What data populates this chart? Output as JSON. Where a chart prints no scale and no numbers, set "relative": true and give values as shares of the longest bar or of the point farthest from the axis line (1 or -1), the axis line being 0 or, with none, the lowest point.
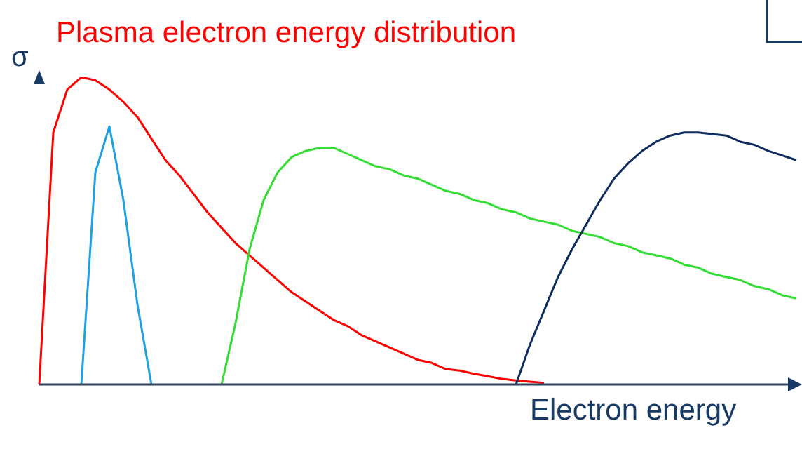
{
  "chart_data": {
    "type": "line",
    "title": "Plasma electron energy distribution",
    "xlabel": "Electron energy",
    "ylabel": "σ",
    "relative": true,
    "tick_labels": false,
    "marker": "none",
    "line_style": "solid",
    "categories": [
      null,
      null,
      null,
      null,
      null,
      null,
      null,
      null,
      null,
      null,
      null,
      null,
      null,
      null,
      null,
      null,
      null,
      null,
      null,
      null,
      null,
      null,
      null,
      null,
      null,
      null,
      null,
      null,
      null,
      null,
      null,
      null,
      null,
      null,
      null,
      null,
      null,
      null,
      null,
      null,
      null,
      null,
      null,
      null,
      null,
      null,
      null,
      null,
      null,
      null,
      null,
      null,
      null,
      null,
      null
    ],
    "series": [
      {
        "color": "#ff0000",
        "values": [
          0,
          0.82,
          0.96,
          1,
          0.99,
          0.96,
          0.92,
          0.87,
          0.8,
          0.73,
          0.68,
          0.62,
          0.56,
          0.51,
          0.46,
          0.42,
          0.38,
          0.34,
          0.3,
          0.27,
          0.24,
          0.21,
          0.19,
          0.16,
          0.14,
          0.12,
          0.1,
          0.08,
          0.07,
          0.05,
          0.045,
          0.035,
          0.027,
          0.018,
          0.013,
          0.009,
          0.005,
          null,
          null,
          null,
          null,
          null,
          null,
          null,
          null,
          null,
          null,
          null,
          null,
          null,
          null,
          null,
          null,
          null,
          null
        ]
      },
      {
        "color": "#1ea0e6",
        "values": [
          null,
          null,
          null,
          0,
          0.69,
          0.84,
          0.6,
          0.26,
          0,
          null,
          null,
          null,
          null,
          null,
          null,
          null,
          null,
          null,
          null,
          null,
          null,
          null,
          null,
          null,
          null,
          null,
          null,
          null,
          null,
          null,
          null,
          null,
          null,
          null,
          null,
          null,
          null,
          null,
          null,
          null,
          null,
          null,
          null,
          null,
          null,
          null,
          null,
          null,
          null,
          null,
          null,
          null,
          null,
          null,
          null
        ]
      },
      {
        "color": "#33dd33",
        "values": [
          null,
          null,
          null,
          null,
          null,
          null,
          null,
          null,
          null,
          null,
          null,
          null,
          null,
          0,
          0.2,
          0.44,
          0.6,
          0.69,
          0.74,
          0.76,
          0.77,
          0.77,
          0.75,
          0.73,
          0.71,
          0.7,
          0.68,
          0.67,
          0.65,
          0.63,
          0.62,
          0.6,
          0.59,
          0.57,
          0.56,
          0.54,
          0.53,
          0.52,
          0.5,
          0.49,
          0.48,
          0.46,
          0.45,
          0.43,
          0.42,
          0.41,
          0.39,
          0.38,
          0.36,
          0.35,
          0.34,
          0.32,
          0.31,
          0.29,
          0.28
        ]
      },
      {
        "color": "#0f2d5e",
        "values": [
          null,
          null,
          null,
          null,
          null,
          null,
          null,
          null,
          null,
          null,
          null,
          null,
          null,
          null,
          null,
          null,
          null,
          null,
          null,
          null,
          null,
          null,
          null,
          null,
          null,
          null,
          null,
          null,
          null,
          null,
          null,
          null,
          null,
          null,
          0,
          0.13,
          0.24,
          0.35,
          0.44,
          0.52,
          0.6,
          0.67,
          0.72,
          0.76,
          0.79,
          0.81,
          0.82,
          0.82,
          0.815,
          0.81,
          0.79,
          0.78,
          0.76,
          0.745,
          0.73
        ]
      }
    ]
  }
}
